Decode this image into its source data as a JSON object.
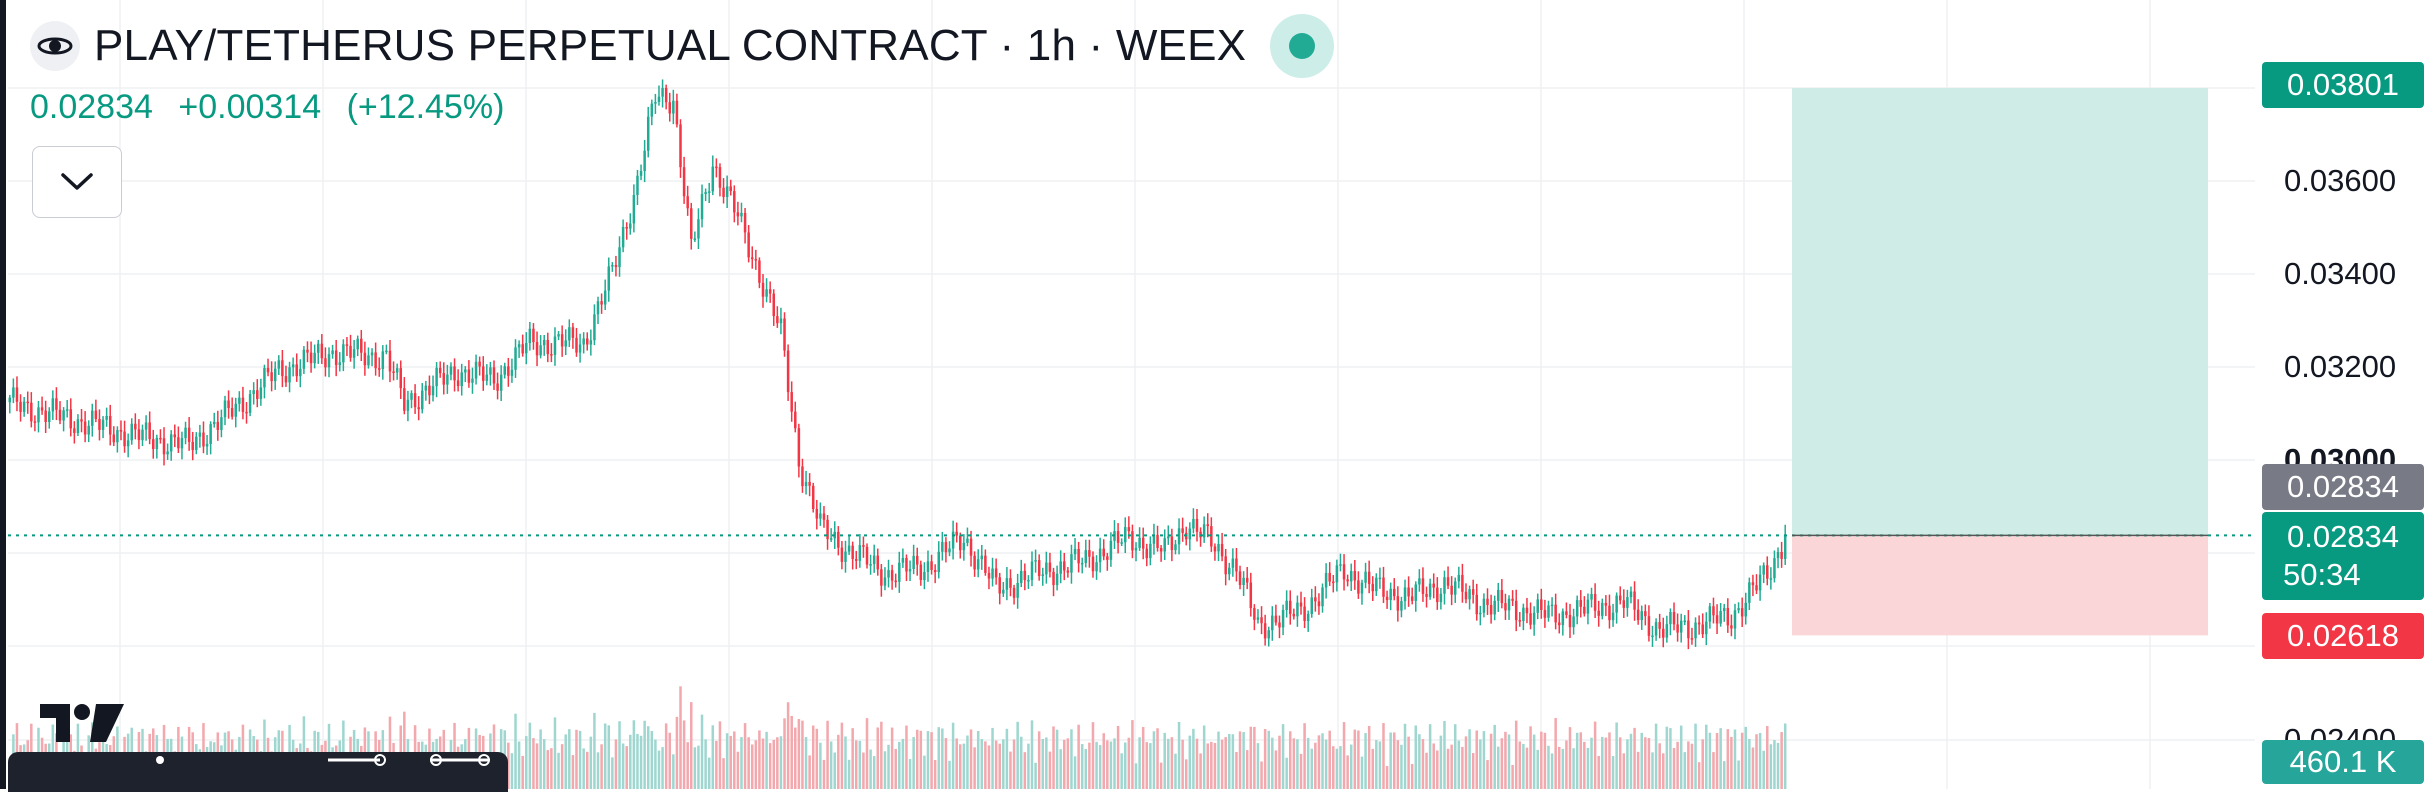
{
  "header": {
    "title": "PLAY/TETHERUS PERPETUAL CONTRACT · 1h · WEEX"
  },
  "quote": {
    "last": "0.02834",
    "change": "+0.00314",
    "change_pct": "(+12.45%)"
  },
  "price_axis": {
    "ticks": [
      "0.03600",
      "0.03400",
      "0.03200",
      "0.03000",
      "0.02400"
    ],
    "target_label": "0.03801",
    "last_gray_label": "0.02834",
    "current_label": "0.02834",
    "countdown": "50:34",
    "stop_label": "0.02618",
    "volume_label": "460.1 K"
  },
  "colors": {
    "up": "#22ab94",
    "down": "#f23645",
    "up_volume": "#9fd7d0",
    "down_volume": "#f2a8ad",
    "profit_zone": "#d0ece6",
    "loss_zone": "#fbd6d9",
    "grid": "#eef0f3"
  },
  "chart_data": {
    "type": "candlestick",
    "symbol": "PLAY/TETHERUS PERPETUAL CONTRACT",
    "interval": "1h",
    "exchange": "WEEX",
    "y_range": [
      0.0236,
      0.0388
    ],
    "grid": true,
    "position_tool": {
      "entry": 0.02834,
      "target": 0.03801,
      "stop": 0.02618
    },
    "anchors": [
      [
        0,
        0.0312
      ],
      [
        20,
        0.0308
      ],
      [
        35,
        0.0305
      ],
      [
        50,
        0.0303
      ],
      [
        60,
        0.0309
      ],
      [
        75,
        0.0319
      ],
      [
        90,
        0.0323
      ],
      [
        105,
        0.0322
      ],
      [
        110,
        0.0312
      ],
      [
        125,
        0.0319
      ],
      [
        135,
        0.0317
      ],
      [
        145,
        0.0325
      ],
      [
        160,
        0.0325
      ],
      [
        168,
        0.034
      ],
      [
        175,
        0.036
      ],
      [
        180,
        0.0378
      ],
      [
        185,
        0.0378
      ],
      [
        190,
        0.0345
      ],
      [
        196,
        0.0364
      ],
      [
        203,
        0.0352
      ],
      [
        210,
        0.0338
      ],
      [
        215,
        0.0327
      ],
      [
        220,
        0.03
      ],
      [
        226,
        0.0285
      ],
      [
        234,
        0.028
      ],
      [
        245,
        0.0275
      ],
      [
        256,
        0.0277
      ],
      [
        266,
        0.0283
      ],
      [
        275,
        0.0272
      ],
      [
        285,
        0.0275
      ],
      [
        300,
        0.0278
      ],
      [
        312,
        0.0283
      ],
      [
        322,
        0.028
      ],
      [
        328,
        0.0286
      ],
      [
        335,
        0.0282
      ],
      [
        342,
        0.0276
      ],
      [
        348,
        0.0264
      ],
      [
        360,
        0.0267
      ],
      [
        372,
        0.0276
      ],
      [
        380,
        0.0272
      ],
      [
        390,
        0.027
      ],
      [
        400,
        0.0273
      ],
      [
        410,
        0.0269
      ],
      [
        430,
        0.0266
      ],
      [
        450,
        0.0269
      ],
      [
        460,
        0.0263
      ],
      [
        470,
        0.0264
      ],
      [
        480,
        0.0266
      ],
      [
        490,
        0.0275
      ],
      [
        495,
        0.0283
      ]
    ]
  }
}
